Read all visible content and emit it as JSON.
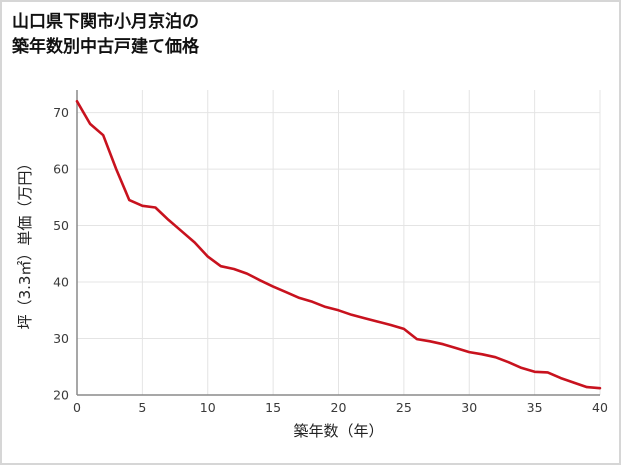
{
  "chart_data": {
    "type": "line",
    "title": "山口県下関市小月京泊の築年数別中古戸建て価格",
    "title_lines": [
      "山口県下関市小月京泊の",
      "築年数別中古戸建て価格"
    ],
    "xlabel": "築年数（年）",
    "ylabel": "坪（3.3㎡）単価（万円）",
    "xlim": [
      0,
      40
    ],
    "ylim": [
      20,
      74
    ],
    "x_ticks": [
      0,
      5,
      10,
      15,
      20,
      25,
      30,
      35,
      40
    ],
    "y_ticks": [
      20,
      30,
      40,
      50,
      60,
      70
    ],
    "grid": true,
    "legend": "none",
    "line_color": "#c8121e",
    "grid_color": "#e4e4e4",
    "axis_color": "#8a8a8a",
    "tick_label_color": "#3a3a3a",
    "axis_title_color": "#222222",
    "x": [
      0,
      1,
      2,
      3,
      4,
      5,
      6,
      7,
      8,
      9,
      10,
      11,
      12,
      13,
      14,
      15,
      16,
      17,
      18,
      19,
      20,
      21,
      22,
      23,
      24,
      25,
      26,
      27,
      28,
      29,
      30,
      31,
      32,
      33,
      34,
      35,
      36,
      37,
      38,
      39,
      40
    ],
    "values": [
      72,
      68,
      66,
      60,
      54.5,
      53.5,
      53.2,
      51,
      49,
      47,
      44.5,
      42.8,
      42.3,
      41.5,
      40.3,
      39.2,
      38.2,
      37.2,
      36.5,
      35.6,
      35,
      34.2,
      33.6,
      33,
      32.4,
      31.7,
      29.9,
      29.5,
      29,
      28.3,
      27.6,
      27.2,
      26.7,
      25.8,
      24.8,
      24.1,
      24,
      23,
      22.2,
      21.4,
      21.2
    ]
  }
}
